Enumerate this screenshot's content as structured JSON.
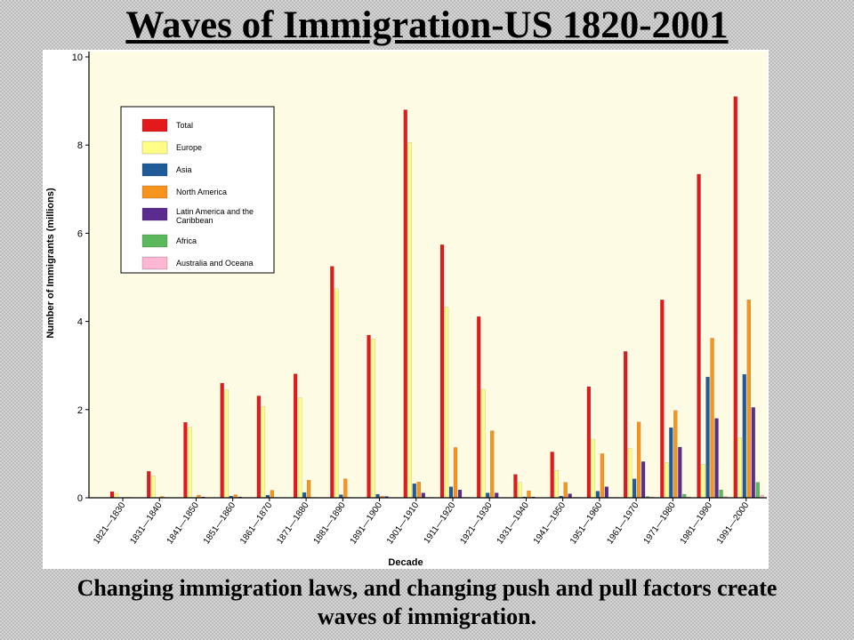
{
  "slide": {
    "title": "Waves of Immigration-US 1820-2001",
    "caption": "Changing immigration laws, and changing push and pull factors create waves of immigration."
  },
  "chart_data": {
    "type": "bar",
    "title": "",
    "xlabel": "Decade",
    "ylabel": "Number of Immigrants (millions)",
    "ylim": [
      0,
      10
    ],
    "yticks": [
      0,
      2,
      4,
      6,
      8,
      10
    ],
    "grid": false,
    "legend_position": "top-left",
    "categories": [
      "1821—1830",
      "1831—1840",
      "1841—1850",
      "1851—1860",
      "1861—1870",
      "1871—1880",
      "1881—1890",
      "1891—1900",
      "1901—1910",
      "1911—1920",
      "1921—1930",
      "1931—1940",
      "1941—1950",
      "1951—1960",
      "1961—1970",
      "1971—1980",
      "1981—1990",
      "1991—2000"
    ],
    "series": [
      {
        "name": "Total",
        "color": "#e31a1c",
        "values": [
          0.14,
          0.6,
          1.71,
          2.6,
          2.31,
          2.81,
          5.25,
          3.69,
          8.8,
          5.74,
          4.11,
          0.53,
          1.04,
          2.52,
          3.32,
          4.49,
          7.34,
          9.1
        ]
      },
      {
        "name": "Europe",
        "color": "#ffff88",
        "values": [
          0.1,
          0.5,
          1.6,
          2.45,
          2.07,
          2.27,
          4.74,
          3.6,
          8.06,
          4.32,
          2.46,
          0.35,
          0.62,
          1.33,
          1.12,
          0.8,
          0.76,
          1.36
        ]
      },
      {
        "name": "Asia",
        "color": "#1f5b99",
        "values": [
          0,
          0,
          0,
          0.04,
          0.06,
          0.12,
          0.07,
          0.08,
          0.32,
          0.25,
          0.11,
          0.02,
          0.04,
          0.15,
          0.43,
          1.59,
          2.74,
          2.8
        ]
      },
      {
        "name": "North America",
        "color": "#f7941d",
        "values": [
          0.01,
          0.03,
          0.06,
          0.07,
          0.17,
          0.4,
          0.43,
          0.04,
          0.36,
          1.14,
          1.52,
          0.16,
          0.35,
          1.0,
          1.72,
          1.98,
          3.62,
          4.49
        ]
      },
      {
        "name": "Latin America and the Caribbean",
        "color": "#5b2c8f",
        "values": [
          0.01,
          0.01,
          0.02,
          0.02,
          0.01,
          0.01,
          0.01,
          0.03,
          0.11,
          0.18,
          0.11,
          0.02,
          0.09,
          0.25,
          0.82,
          1.15,
          1.8,
          2.05
        ]
      },
      {
        "name": "Africa",
        "color": "#5cb85c",
        "values": [
          0,
          0,
          0,
          0,
          0,
          0,
          0,
          0,
          0.01,
          0.01,
          0,
          0,
          0.01,
          0.01,
          0.03,
          0.08,
          0.18,
          0.35
        ]
      },
      {
        "name": "Australia and Oceana",
        "color": "#ffb6d3",
        "values": [
          0,
          0,
          0,
          0,
          0,
          0,
          0,
          0,
          0.01,
          0.01,
          0,
          0,
          0.01,
          0.01,
          0.02,
          0.02,
          0.03,
          0.06
        ]
      }
    ]
  }
}
